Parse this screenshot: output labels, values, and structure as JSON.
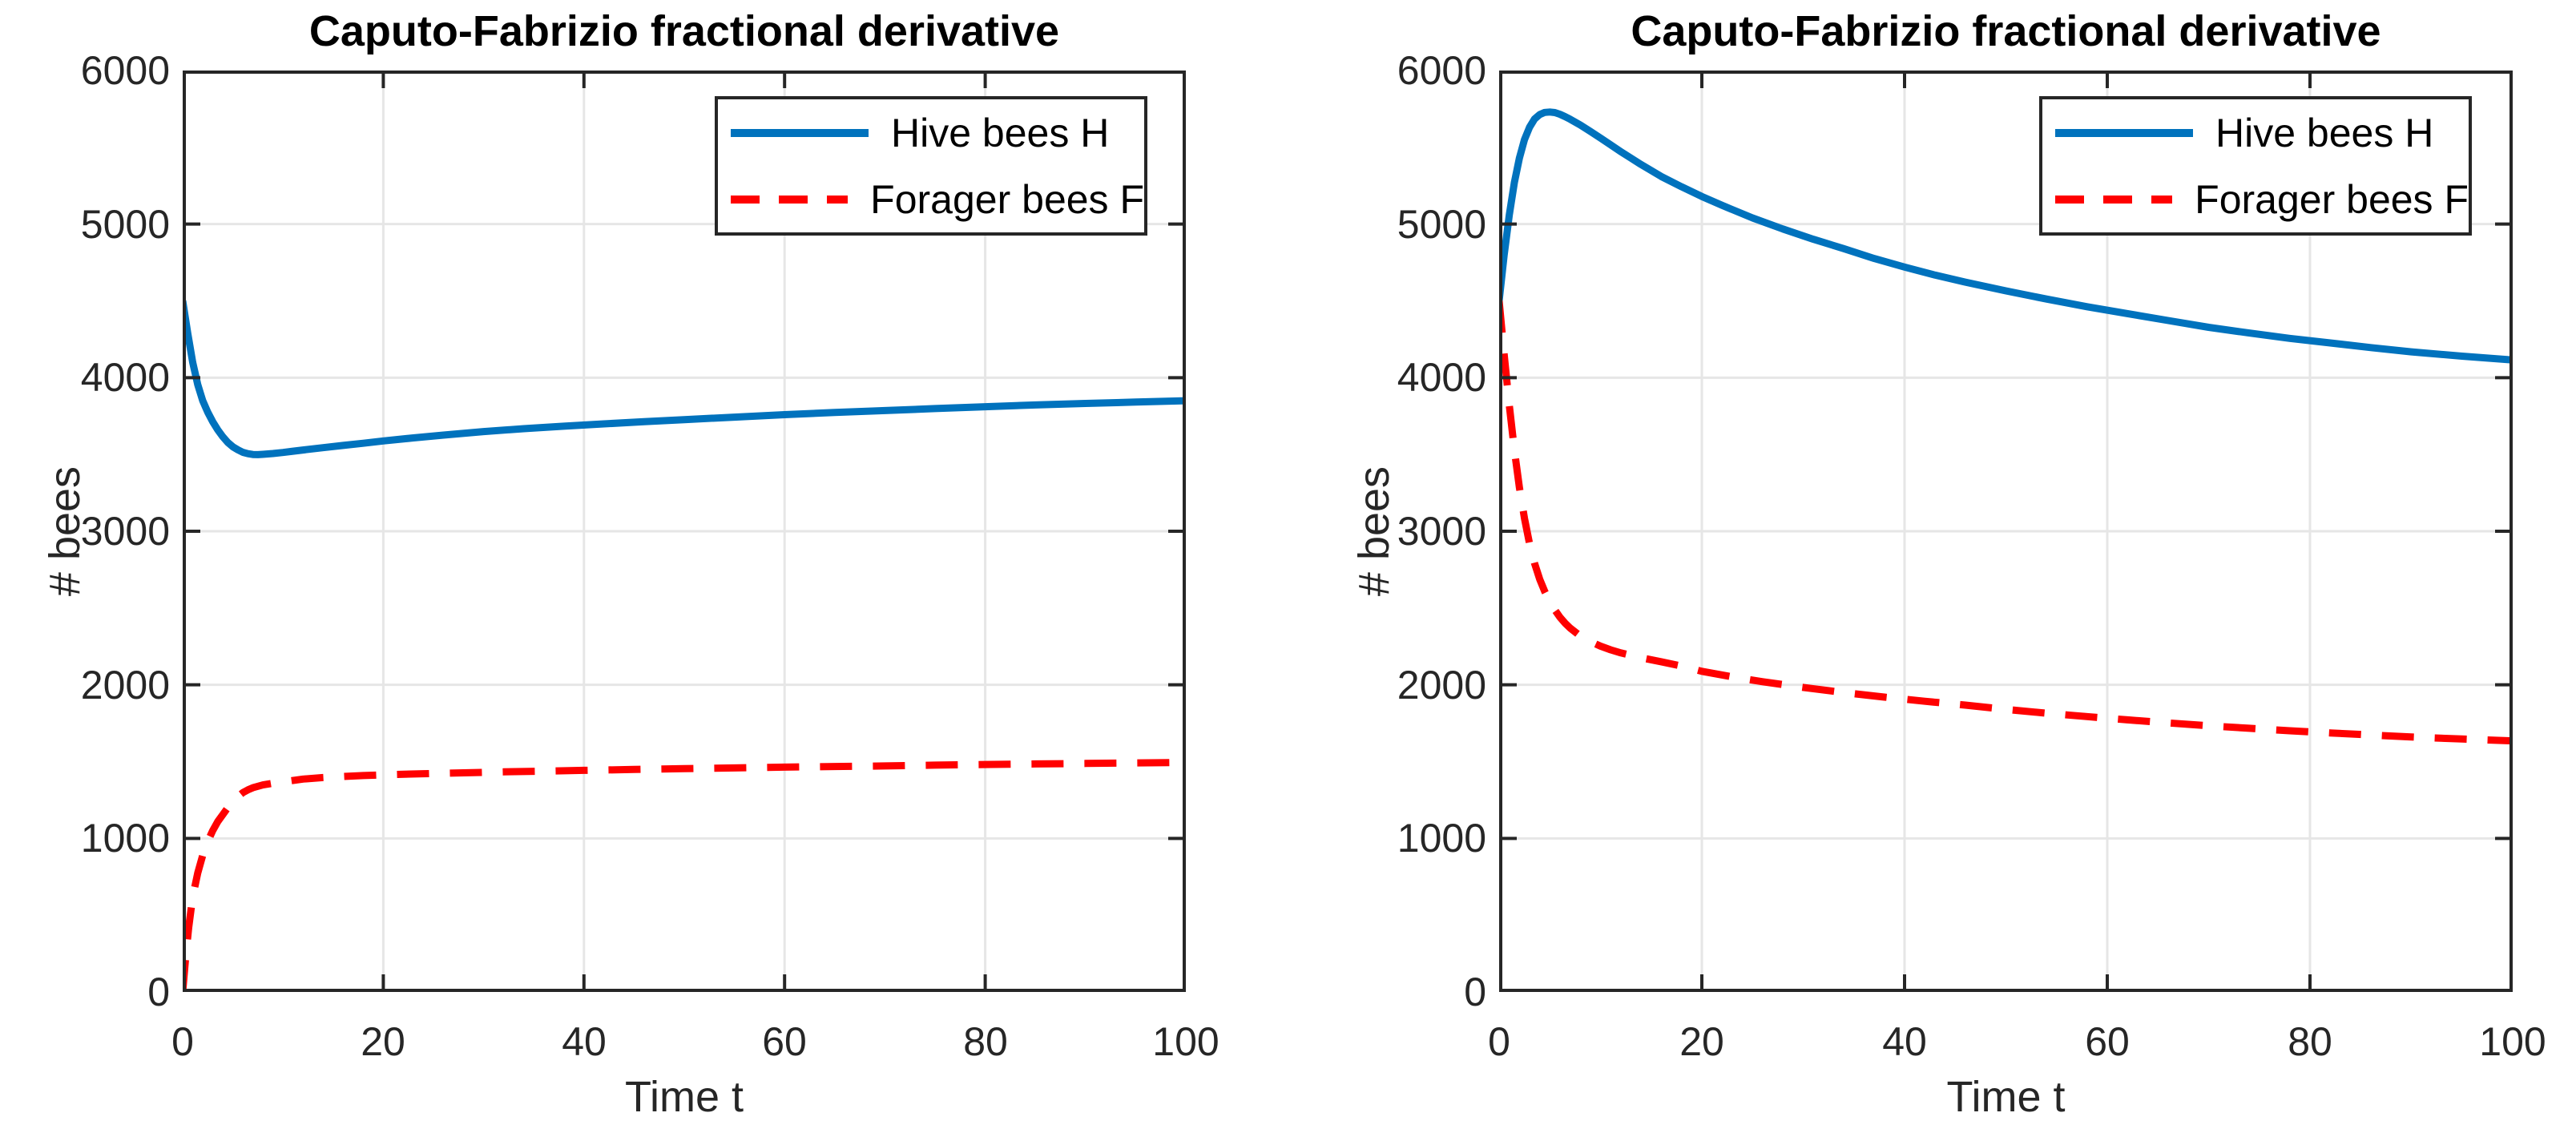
{
  "figure_bg": "#ffffff",
  "panels": [
    {
      "title": "Caputo-Fabrizio fractional derivative",
      "xlabel": "Time t",
      "ylabel": "# bees",
      "yticks": [
        "6000",
        "5000",
        "4000",
        "3000",
        "2000",
        "1000",
        "0"
      ],
      "xticks": [
        "0",
        "20",
        "40",
        "60",
        "80",
        "100"
      ]
    },
    {
      "title": "Caputo-Fabrizio fractional derivative",
      "xlabel": "Time t",
      "ylabel": "# bees",
      "yticks": [
        "6000",
        "5000",
        "4000",
        "3000",
        "2000",
        "1000",
        "0"
      ],
      "xticks": [
        "0",
        "20",
        "40",
        "60",
        "80",
        "100"
      ]
    }
  ],
  "chart_data": [
    {
      "type": "line",
      "title": "Caputo-Fabrizio fractional derivative",
      "xlabel": "Time t",
      "ylabel": "# bees",
      "xlim": [
        0,
        100
      ],
      "ylim": [
        0,
        6000
      ],
      "xtick_values": [
        0,
        20,
        40,
        60,
        80,
        100
      ],
      "ytick_values": [
        0,
        1000,
        2000,
        3000,
        4000,
        5000,
        6000
      ],
      "grid": true,
      "legend_position": "northeast",
      "grid_color": "#e6e6e6",
      "axis_color": "#262626",
      "series": [
        {
          "name": "Hive bees H",
          "color": "#0072BD",
          "style": "solid",
          "points": [
            [
              0,
              4500
            ],
            [
              0.5,
              4290
            ],
            [
              1,
              4100
            ],
            [
              1.5,
              3955
            ],
            [
              2,
              3850
            ],
            [
              2.5,
              3775
            ],
            [
              3,
              3712
            ],
            [
              3.5,
              3660
            ],
            [
              4,
              3615
            ],
            [
              4.5,
              3578
            ],
            [
              5,
              3550
            ],
            [
              5.5,
              3530
            ],
            [
              6,
              3514
            ],
            [
              6.5,
              3505
            ],
            [
              7,
              3500
            ],
            [
              7.5,
              3499
            ],
            [
              8,
              3501
            ],
            [
              9,
              3506
            ],
            [
              10,
              3513
            ],
            [
              11,
              3521
            ],
            [
              12,
              3529
            ],
            [
              14,
              3544
            ],
            [
              16,
              3559
            ],
            [
              18,
              3573
            ],
            [
              20,
              3588
            ],
            [
              23,
              3608
            ],
            [
              26,
              3626
            ],
            [
              30,
              3649
            ],
            [
              34,
              3668
            ],
            [
              38,
              3684
            ],
            [
              42,
              3699
            ],
            [
              46,
              3713
            ],
            [
              50,
              3727
            ],
            [
              55,
              3743
            ],
            [
              60,
              3759
            ],
            [
              65,
              3773
            ],
            [
              70,
              3786
            ],
            [
              75,
              3799
            ],
            [
              80,
              3811
            ],
            [
              85,
              3822
            ],
            [
              90,
              3832
            ],
            [
              95,
              3841
            ],
            [
              100,
              3850
            ]
          ]
        },
        {
          "name": "Forager bees F",
          "color": "#FF0000",
          "style": "dashed",
          "points": [
            [
              0,
              0
            ],
            [
              0.3,
              230
            ],
            [
              0.6,
              420
            ],
            [
              1,
              620
            ],
            [
              1.5,
              775
            ],
            [
              2,
              890
            ],
            [
              2.5,
              980
            ],
            [
              3,
              1052
            ],
            [
              3.5,
              1110
            ],
            [
              4,
              1155
            ],
            [
              4.5,
              1200
            ],
            [
              5,
              1240
            ],
            [
              5.5,
              1272
            ],
            [
              6,
              1298
            ],
            [
              6.5,
              1316
            ],
            [
              7,
              1330
            ],
            [
              8,
              1348
            ],
            [
              9,
              1359
            ],
            [
              10,
              1368
            ],
            [
              12,
              1386
            ],
            [
              14,
              1396
            ],
            [
              16,
              1403
            ],
            [
              18,
              1409
            ],
            [
              20,
              1414
            ],
            [
              24,
              1421
            ],
            [
              28,
              1427
            ],
            [
              32,
              1433
            ],
            [
              36,
              1438
            ],
            [
              40,
              1443
            ],
            [
              45,
              1449
            ],
            [
              50,
              1454
            ],
            [
              55,
              1459
            ],
            [
              60,
              1464
            ],
            [
              65,
              1468
            ],
            [
              70,
              1472
            ],
            [
              75,
              1477
            ],
            [
              80,
              1481
            ],
            [
              85,
              1485
            ],
            [
              90,
              1488
            ],
            [
              95,
              1491
            ],
            [
              100,
              1494
            ]
          ]
        }
      ]
    },
    {
      "type": "line",
      "title": "Caputo-Fabrizio fractional derivative",
      "xlabel": "Time t",
      "ylabel": "# bees",
      "xlim": [
        0,
        100
      ],
      "ylim": [
        0,
        6000
      ],
      "xtick_values": [
        0,
        20,
        40,
        60,
        80,
        100
      ],
      "ytick_values": [
        0,
        1000,
        2000,
        3000,
        4000,
        5000,
        6000
      ],
      "grid": true,
      "legend_position": "northeast",
      "grid_color": "#e6e6e6",
      "axis_color": "#262626",
      "series": [
        {
          "name": "Hive bees H",
          "color": "#0072BD",
          "style": "solid",
          "points": [
            [
              0,
              4500
            ],
            [
              0.5,
              4800
            ],
            [
              1,
              5060
            ],
            [
              1.5,
              5270
            ],
            [
              2,
              5430
            ],
            [
              2.5,
              5550
            ],
            [
              3,
              5630
            ],
            [
              3.5,
              5685
            ],
            [
              4,
              5713
            ],
            [
              4.5,
              5727
            ],
            [
              5,
              5730
            ],
            [
              5.5,
              5726
            ],
            [
              6,
              5715
            ],
            [
              6.5,
              5700
            ],
            [
              7,
              5683
            ],
            [
              8,
              5646
            ],
            [
              9,
              5604
            ],
            [
              10,
              5560
            ],
            [
              11,
              5516
            ],
            [
              12,
              5472
            ],
            [
              14,
              5388
            ],
            [
              16,
              5310
            ],
            [
              18,
              5243
            ],
            [
              20,
              5180
            ],
            [
              22,
              5122
            ],
            [
              25,
              5040
            ],
            [
              28,
              4968
            ],
            [
              31,
              4901
            ],
            [
              34,
              4840
            ],
            [
              37,
              4776
            ],
            [
              40,
              4720
            ],
            [
              43,
              4668
            ],
            [
              46,
              4622
            ],
            [
              50,
              4565
            ],
            [
              54,
              4512
            ],
            [
              58,
              4462
            ],
            [
              62,
              4417
            ],
            [
              66,
              4372
            ],
            [
              70,
              4328
            ],
            [
              74,
              4291
            ],
            [
              78,
              4256
            ],
            [
              82,
              4226
            ],
            [
              86,
              4196
            ],
            [
              90,
              4168
            ],
            [
              95,
              4140
            ],
            [
              100,
              4115
            ]
          ]
        },
        {
          "name": "Forager bees F",
          "color": "#FF0000",
          "style": "dashed",
          "points": [
            [
              0,
              4500
            ],
            [
              0.5,
              4150
            ],
            [
              1,
              3820
            ],
            [
              1.5,
              3530
            ],
            [
              2,
              3285
            ],
            [
              2.5,
              3085
            ],
            [
              3,
              2920
            ],
            [
              3.5,
              2790
            ],
            [
              4,
              2688
            ],
            [
              4.5,
              2608
            ],
            [
              5,
              2540
            ],
            [
              5.5,
              2487
            ],
            [
              6,
              2440
            ],
            [
              6.5,
              2402
            ],
            [
              7,
              2370
            ],
            [
              8,
              2318
            ],
            [
              9,
              2282
            ],
            [
              10,
              2252
            ],
            [
              11,
              2228
            ],
            [
              12,
              2208
            ],
            [
              14,
              2176
            ],
            [
              16,
              2150
            ],
            [
              18,
              2122
            ],
            [
              20,
              2088
            ],
            [
              23,
              2052
            ],
            [
              26,
              2020
            ],
            [
              30,
              1983
            ],
            [
              34,
              1950
            ],
            [
              38,
              1920
            ],
            [
              42,
              1893
            ],
            [
              46,
              1868
            ],
            [
              50,
              1840
            ],
            [
              54,
              1815
            ],
            [
              58,
              1793
            ],
            [
              62,
              1772
            ],
            [
              66,
              1752
            ],
            [
              70,
              1733
            ],
            [
              74,
              1717
            ],
            [
              78,
              1701
            ],
            [
              82,
              1687
            ],
            [
              86,
              1673
            ],
            [
              90,
              1660
            ],
            [
              95,
              1647
            ],
            [
              100,
              1635
            ]
          ]
        }
      ]
    }
  ]
}
